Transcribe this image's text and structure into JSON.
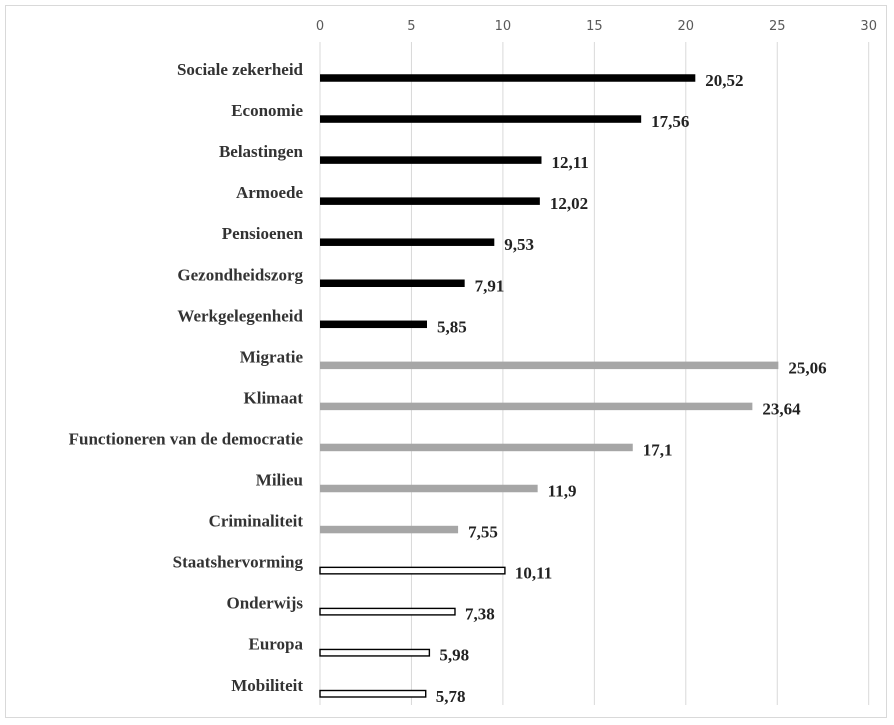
{
  "chart_data": {
    "type": "bar",
    "orientation": "horizontal",
    "title": "",
    "xlabel": "",
    "ylabel": "",
    "xlim": [
      0,
      30
    ],
    "x_ticks": [
      0,
      5,
      10,
      15,
      20,
      25,
      30
    ],
    "x_axis_position": "top",
    "grid": "vertical",
    "legend": "none",
    "categories": [
      "Sociale zekerheid",
      "Economie",
      "Belastingen",
      "Armoede",
      "Pensioenen",
      "Gezondheidszorg",
      "Werkgelegenheid",
      "Migratie",
      "Klimaat",
      "Functioneren van de democratie",
      "Milieu",
      "Criminaliteit",
      "Staatshervorming",
      "Onderwijs",
      "Europa",
      "Mobiliteit"
    ],
    "values": [
      20.52,
      17.56,
      12.11,
      12.02,
      9.53,
      7.91,
      5.85,
      25.06,
      23.64,
      17.1,
      11.9,
      7.55,
      10.11,
      7.38,
      5.98,
      5.78
    ],
    "value_labels": [
      "20,52",
      "17,56",
      "12,11",
      "12,02",
      "9,53",
      "7,91",
      "5,85",
      "25,06",
      "23,64",
      "17,1",
      "11,9",
      "7,55",
      "10,11",
      "7,38",
      "5,98",
      "5,78"
    ],
    "groups": [
      {
        "style": "black",
        "color": "#000000",
        "count": 7
      },
      {
        "style": "gray",
        "color": "#a6a6a6",
        "count": 5
      },
      {
        "style": "outline",
        "color": "#ffffff",
        "stroke": "#000000",
        "count": 4
      }
    ]
  }
}
